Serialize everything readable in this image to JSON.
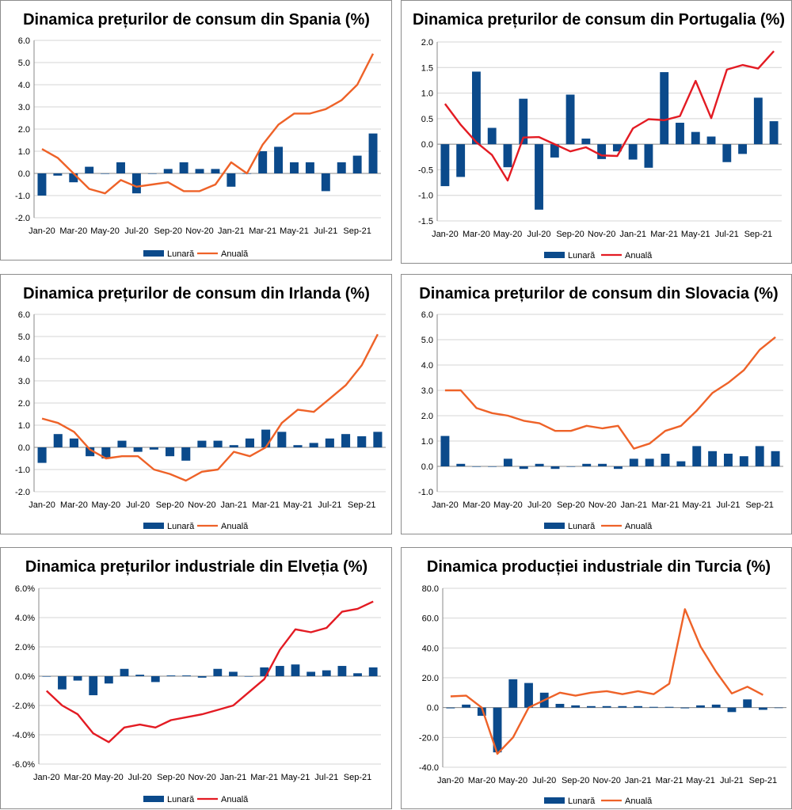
{
  "months": [
    "Jan-20",
    "Feb-20",
    "Mar-20",
    "Apr-20",
    "May-20",
    "Jun-20",
    "Jul-20",
    "Aug-20",
    "Sep-20",
    "Oct-20",
    "Nov-20",
    "Dec-20",
    "Jan-21",
    "Feb-21",
    "Mar-21",
    "Apr-21",
    "May-21",
    "Jun-21",
    "Jul-21",
    "Aug-21",
    "Sep-21",
    "Oct-21"
  ],
  "chart_data": [
    {
      "id": "spain",
      "type": "bar+line",
      "title": "Dinamica prețurilor de consum din Spania (%)",
      "ylim": [
        -2,
        6
      ],
      "ystep": 1,
      "yticks": [
        "-2.0",
        "-1.0",
        "0.0",
        "1.0",
        "2.0",
        "3.0",
        "4.0",
        "5.0",
        "6.0"
      ],
      "xlabels": [
        "Jan-20",
        "Mar-20",
        "May-20",
        "Jul-20",
        "Sep-20",
        "Nov-20",
        "Jan-21",
        "Mar-21",
        "May-21",
        "Jul-21",
        "Sep-21"
      ],
      "series": [
        {
          "name": "Lunară",
          "kind": "bar",
          "color": "#0b4a8b",
          "values": [
            -1.0,
            -0.1,
            -0.4,
            0.3,
            0.0,
            0.5,
            -0.9,
            0.0,
            0.2,
            0.5,
            0.2,
            0.2,
            -0.6,
            0.0,
            1.0,
            1.2,
            0.5,
            0.5,
            -0.8,
            0.5,
            0.8,
            1.8
          ]
        },
        {
          "name": "Anuală",
          "kind": "line",
          "color": "#ee6228",
          "values": [
            1.1,
            0.7,
            0.0,
            -0.7,
            -0.9,
            -0.3,
            -0.6,
            -0.5,
            -0.4,
            -0.8,
            -0.8,
            -0.5,
            0.5,
            0.0,
            1.3,
            2.2,
            2.7,
            2.7,
            2.9,
            3.3,
            4.0,
            5.4
          ]
        }
      ]
    },
    {
      "id": "portugal",
      "type": "bar+line",
      "title": "Dinamica prețurilor de consum din Portugalia (%)",
      "ylim": [
        -1.5,
        2.0
      ],
      "ystep": 0.5,
      "yticks": [
        "-1.5",
        "-1.0",
        "-0.5",
        "0.0",
        "0.5",
        "1.0",
        "1.5",
        "2.0"
      ],
      "xlabels": [
        "Jan-20",
        "Mar-20",
        "May-20",
        "Jul-20",
        "Sep-20",
        "Nov-20",
        "Jan-21",
        "Mar-21",
        "May-21",
        "Jul-21",
        "Sep-21"
      ],
      "series": [
        {
          "name": "Lunară",
          "kind": "bar",
          "color": "#0b4a8b",
          "values": [
            -0.82,
            -0.64,
            1.42,
            0.32,
            -0.45,
            0.89,
            -1.28,
            -0.26,
            0.97,
            0.11,
            -0.29,
            -0.14,
            -0.3,
            -0.46,
            1.41,
            0.42,
            0.24,
            0.15,
            -0.35,
            -0.19,
            0.91,
            0.45
          ]
        },
        {
          "name": "Anuală",
          "kind": "line",
          "color": "#e31b23",
          "values": [
            0.79,
            0.38,
            0.04,
            -0.21,
            -0.71,
            0.13,
            0.14,
            -0.0,
            -0.14,
            -0.06,
            -0.22,
            -0.23,
            0.31,
            0.49,
            0.47,
            0.55,
            1.24,
            0.51,
            1.46,
            1.55,
            1.48,
            1.82
          ]
        }
      ]
    },
    {
      "id": "ireland",
      "type": "bar+line",
      "title": "Dinamica prețurilor de consum din Irlanda (%)",
      "ylim": [
        -2,
        6
      ],
      "ystep": 1,
      "yticks": [
        "-2.0",
        "-1.0",
        "0.0",
        "1.0",
        "2.0",
        "3.0",
        "4.0",
        "5.0",
        "6.0"
      ],
      "xlabels": [
        "Jan-20",
        "Mar-20",
        "May-20",
        "Jul-20",
        "Sep-20",
        "Nov-20",
        "Jan-21",
        "Mar-21",
        "May-21",
        "Jul-21",
        "Sep-21"
      ],
      "series": [
        {
          "name": "Lunară",
          "kind": "bar",
          "color": "#0b4a8b",
          "values": [
            -0.7,
            0.6,
            0.4,
            -0.4,
            -0.5,
            0.3,
            -0.2,
            -0.1,
            -0.4,
            -0.6,
            0.3,
            0.3,
            0.1,
            0.4,
            0.8,
            0.7,
            0.1,
            0.2,
            0.4,
            0.6,
            0.5,
            0.7
          ]
        },
        {
          "name": "Anuală",
          "kind": "line",
          "color": "#ee6228",
          "values": [
            1.3,
            1.1,
            0.7,
            -0.1,
            -0.5,
            -0.4,
            -0.4,
            -1.0,
            -1.2,
            -1.5,
            -1.1,
            -1.0,
            -0.2,
            -0.4,
            0.0,
            1.1,
            1.7,
            1.6,
            2.2,
            2.8,
            3.7,
            5.1
          ]
        }
      ]
    },
    {
      "id": "slovakia",
      "type": "bar+line",
      "title": "Dinamica prețurilor de consum din Slovacia (%)",
      "ylim": [
        -1,
        6
      ],
      "ystep": 1,
      "yticks": [
        "-1.0",
        "0.0",
        "1.0",
        "2.0",
        "3.0",
        "4.0",
        "5.0",
        "6.0"
      ],
      "xlabels": [
        "Jan-20",
        "Mar-20",
        "May-20",
        "Jul-20",
        "Sep-20",
        "Nov-20",
        "Jan-21",
        "Mar-21",
        "May-21",
        "Jul-21",
        "Sep-21"
      ],
      "series": [
        {
          "name": "Lunară",
          "kind": "bar",
          "color": "#0b4a8b",
          "values": [
            1.2,
            0.1,
            0.0,
            0.0,
            0.3,
            -0.1,
            0.1,
            -0.1,
            0.0,
            0.1,
            0.1,
            -0.1,
            0.3,
            0.3,
            0.5,
            0.2,
            0.8,
            0.6,
            0.5,
            0.4,
            0.8,
            0.6
          ]
        },
        {
          "name": "Anuală",
          "kind": "line",
          "color": "#ee6228",
          "values": [
            3.0,
            3.0,
            2.3,
            2.1,
            2.0,
            1.8,
            1.7,
            1.4,
            1.4,
            1.6,
            1.5,
            1.6,
            0.7,
            0.9,
            1.4,
            1.6,
            2.2,
            2.9,
            3.3,
            3.8,
            4.6,
            5.1
          ]
        }
      ]
    },
    {
      "id": "switzerland",
      "type": "bar+line",
      "title": "Dinamica prețurilor industriale din Elveția (%)",
      "ylim": [
        -6,
        6
      ],
      "ystep": 2,
      "yticks": [
        "-6.0%",
        "-4.0%",
        "-2.0%",
        "0.0%",
        "2.0%",
        "4.0%",
        "6.0%"
      ],
      "xlabels": [
        "Jan-20",
        "Mar-20",
        "May-20",
        "Jul-20",
        "Sep-20",
        "Nov-20",
        "Jan-21",
        "Mar-21",
        "May-21",
        "Jul-21",
        "Sep-21"
      ],
      "series": [
        {
          "name": "Lunară",
          "kind": "bar",
          "color": "#0b4a8b",
          "values": [
            0.0,
            -0.9,
            -0.3,
            -1.3,
            -0.5,
            0.5,
            0.1,
            -0.4,
            0.05,
            0.05,
            -0.1,
            0.5,
            0.3,
            0.0,
            0.6,
            0.7,
            0.8,
            0.3,
            0.4,
            0.7,
            0.2,
            0.6
          ]
        },
        {
          "name": "Anuală",
          "kind": "line",
          "color": "#e31b23",
          "values": [
            -1.0,
            -2.0,
            -2.6,
            -3.9,
            -4.5,
            -3.5,
            -3.3,
            -3.5,
            -3.0,
            -2.8,
            -2.6,
            -2.3,
            -2.0,
            -1.1,
            -0.2,
            1.8,
            3.2,
            3.0,
            3.3,
            4.4,
            4.6,
            5.1
          ]
        }
      ]
    },
    {
      "id": "turkey",
      "type": "bar+line",
      "title": "Dinamica producției industriale din Turcia (%)",
      "ylim": [
        -40,
        80
      ],
      "ystep": 20,
      "yticks": [
        "-40.0",
        "-20.0",
        "0.0",
        "20.0",
        "40.0",
        "60.0",
        "80.0"
      ],
      "xlabels": [
        "Jan-20",
        "Mar-20",
        "May-20",
        "Jul-20",
        "Sep-20",
        "Nov-20",
        "Jan-21",
        "Mar-21",
        "May-21",
        "Jul-21",
        "Sep-21"
      ],
      "series": [
        {
          "name": "Lunară",
          "kind": "bar",
          "color": "#0b4a8b",
          "values": [
            -0.5,
            2.0,
            -5.5,
            -30.0,
            19.0,
            16.5,
            10.0,
            2.5,
            1.5,
            1.0,
            1.0,
            1.0,
            1.0,
            0.5,
            0.5,
            -0.5,
            1.5,
            2.0,
            -3.0,
            5.5,
            -1.5,
            0.0
          ]
        },
        {
          "name": "Anuală",
          "kind": "line",
          "color": "#ee6228",
          "values": [
            7.5,
            8.0,
            0.0,
            -31.0,
            -20.0,
            0.0,
            5.0,
            10.0,
            8.0,
            10.0,
            11.0,
            9.0,
            11.0,
            9.0,
            16.0,
            66.0,
            41.0,
            24.0,
            9.5,
            14.0,
            8.5,
            null
          ]
        }
      ]
    }
  ]
}
